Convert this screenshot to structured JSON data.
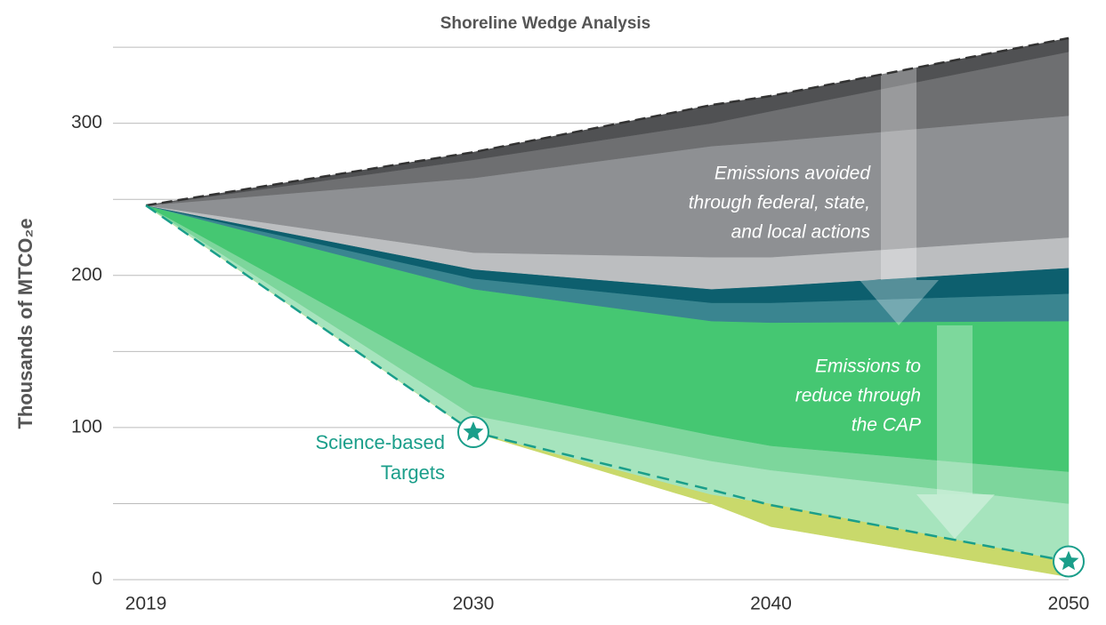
{
  "chart_data": {
    "type": "area",
    "title": "Shoreline Wedge Analysis",
    "y_label": "Thousands of MTCO₂e",
    "x": [
      2019,
      2030,
      2038,
      2040,
      2050
    ],
    "xlim": [
      2019,
      2050
    ],
    "xticks": [
      2019,
      2030,
      2040,
      2050
    ],
    "ylim": [
      0,
      360
    ],
    "yticks": [
      0,
      100,
      200,
      300
    ],
    "grid_lines": [
      0,
      50,
      100,
      150,
      200,
      250,
      300,
      350
    ],
    "grid": true,
    "series": [
      {
        "values": [
          246,
          97,
          50,
          35,
          2
        ]
      },
      {
        "color": "#c9d96b",
        "values": [
          246,
          97,
          56,
          50,
          12
        ]
      },
      {
        "color": "#a6e4bd",
        "values": [
          246,
          108,
          78,
          72,
          50
        ]
      },
      {
        "color": "#7dd69c",
        "values": [
          246,
          127,
          95,
          88,
          71
        ]
      },
      {
        "color": "#45c772",
        "values": [
          246,
          191,
          170,
          169,
          170
        ]
      },
      {
        "color": "#3a8590",
        "values": [
          246,
          198,
          182,
          182,
          188
        ]
      },
      {
        "color": "#0d5f6e",
        "values": [
          246,
          204,
          191,
          193,
          205
        ]
      },
      {
        "color": "#bcbec0",
        "values": [
          246,
          215,
          212,
          212,
          225
        ]
      },
      {
        "color": "#8e9093",
        "values": [
          246,
          264,
          285,
          288,
          305
        ]
      },
      {
        "color": "#6e6f71",
        "values": [
          246,
          276,
          300,
          308,
          347
        ]
      },
      {
        "color": "#505153",
        "values": [
          246,
          281,
          312,
          318,
          356
        ],
        "dashed": true
      }
    ],
    "target_line": {
      "color": "#1a9e8a",
      "values": [
        246,
        97,
        59,
        49,
        12
      ],
      "markers": [
        null,
        "star",
        null,
        null,
        "star"
      ],
      "label_lines": [
        "Science-based",
        "Targets"
      ]
    },
    "annotations": [
      {
        "lines": [
          "Emissions avoided",
          "through federal, state,",
          "and local actions"
        ]
      },
      {
        "lines": [
          "Emissions to",
          "reduce through",
          "the CAP"
        ]
      }
    ]
  }
}
